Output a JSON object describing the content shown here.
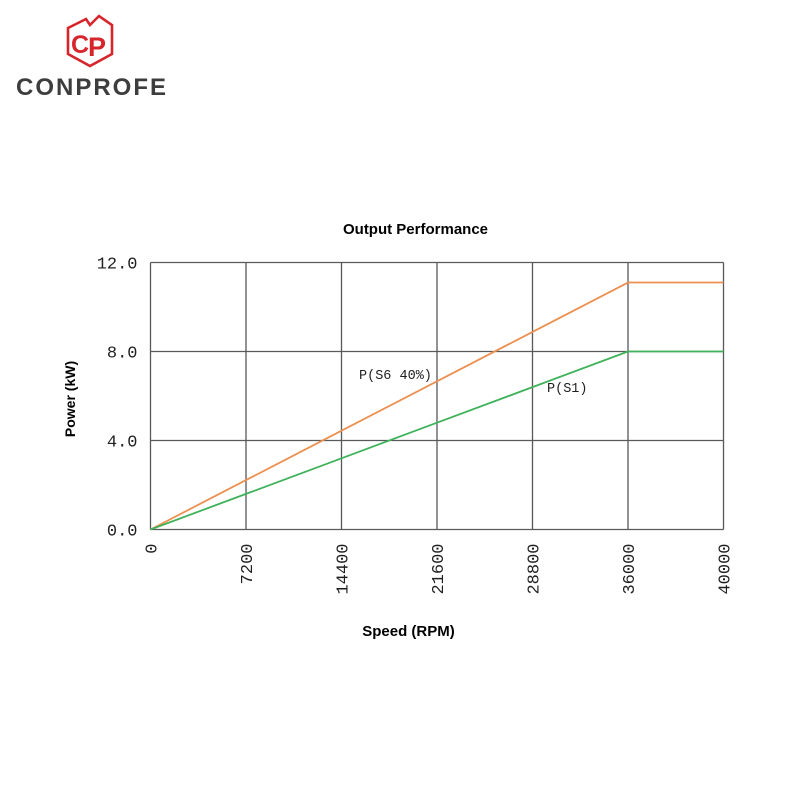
{
  "logo": {
    "text": "CONPROFE",
    "icon_color": "#d6252b",
    "text_color": "#3d3d3d"
  },
  "chart_data": {
    "type": "line",
    "title": "Output Performance",
    "xlabel": "Speed (RPM)",
    "ylabel": "Power (kW)",
    "categories": [
      "0",
      "7200",
      "14400",
      "21600",
      "28800",
      "36000",
      "40000"
    ],
    "series": [
      {
        "name": "P(S6 40%)",
        "color": "#ec9050",
        "values": [
          0,
          2.22,
          4.44,
          6.66,
          8.88,
          11.1,
          11.1
        ]
      },
      {
        "name": "P(S1)",
        "color": "#3fb25a",
        "values": [
          0,
          1.6,
          3.2,
          4.8,
          6.4,
          8.0,
          8.0
        ]
      }
    ],
    "ylim": [
      0,
      12
    ],
    "yticks": [
      {
        "value": 0,
        "label": "0.0"
      },
      {
        "value": 4,
        "label": "4.0"
      },
      {
        "value": 8,
        "label": "8.0"
      },
      {
        "value": 12,
        "label": "12.0"
      }
    ],
    "grid": true,
    "gridline_color": "#58595b",
    "tick_label_color": "#1f1f1f",
    "legend": "inline-labels"
  }
}
